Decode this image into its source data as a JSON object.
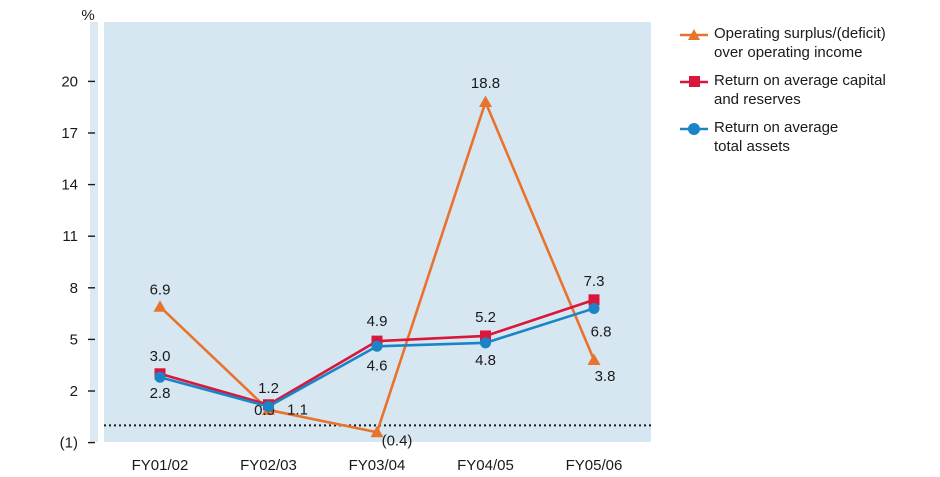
{
  "chart_data": {
    "type": "line",
    "y_unit": "%",
    "categories": [
      "FY01/02",
      "FY02/03",
      "FY03/04",
      "FY04/05",
      "FY05/06"
    ],
    "y_ticks": [
      {
        "value": -1,
        "label": "(1)"
      },
      {
        "value": 2,
        "label": "2"
      },
      {
        "value": 5,
        "label": "5"
      },
      {
        "value": 8,
        "label": "8"
      },
      {
        "value": 11,
        "label": "11"
      },
      {
        "value": 14,
        "label": "14"
      },
      {
        "value": 17,
        "label": "17"
      },
      {
        "value": 20,
        "label": "20"
      }
    ],
    "ylim": [
      -1.5,
      23
    ],
    "zero_line": 0,
    "legend_position": "top-right",
    "series": [
      {
        "name": "Operating surplus/(deficit) over operating income",
        "legend_lines": [
          "Operating surplus/(deficit)",
          "over operating income"
        ],
        "color": "#e8732c",
        "marker": "triangle",
        "values": [
          6.9,
          0.9,
          -0.4,
          18.8,
          3.8
        ],
        "value_labels": [
          "6.9",
          "0.9",
          "(0.4)",
          "18.8",
          "3.8"
        ]
      },
      {
        "name": "Return on average capital and reserves",
        "legend_lines": [
          "Return on average capital",
          "and reserves"
        ],
        "color": "#d9163b",
        "marker": "square",
        "values": [
          3.0,
          1.2,
          4.9,
          5.2,
          7.3
        ],
        "value_labels": [
          "3.0",
          "1.2",
          "4.9",
          "5.2",
          "7.3"
        ]
      },
      {
        "name": "Return on average total assets",
        "legend_lines": [
          "Return on average",
          "total assets"
        ],
        "color": "#1a84c7",
        "marker": "circle",
        "values": [
          2.8,
          1.1,
          4.6,
          4.8,
          6.8
        ],
        "value_labels": [
          "2.8",
          "1.1",
          "4.6",
          "4.8",
          "6.8"
        ]
      }
    ],
    "colors": {
      "plot_background": "#d6e7f1",
      "axis_strip": "#dbe9f2"
    }
  }
}
